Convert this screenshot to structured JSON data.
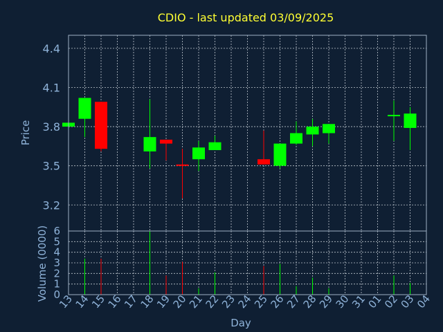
{
  "chart_data": {
    "title": "CDIO - last updated 03/09/2025",
    "type": "candlestick",
    "price_panel": {
      "ylabel": "Price",
      "ylim": [
        3.0,
        4.5
      ],
      "yticks": [
        "3.2",
        "3.5",
        "3.8",
        "4.1",
        "4.4"
      ],
      "grid": true
    },
    "volume_panel": {
      "ylabel": "Volume (0000)",
      "ylim": [
        0,
        6
      ],
      "yticks": [
        "0",
        "1",
        "2",
        "3",
        "4",
        "5",
        "6"
      ],
      "grid": true
    },
    "xlabel": "Day",
    "x_ticks": [
      "13",
      "14",
      "15",
      "16",
      "17",
      "18",
      "19",
      "20",
      "21",
      "22",
      "23",
      "24",
      "25",
      "26",
      "27",
      "28",
      "29",
      "30",
      "31",
      "01",
      "02",
      "03",
      "04"
    ],
    "colors": {
      "up": "#00ff00",
      "down": "#ff0000"
    },
    "candles": [
      {
        "x": "13",
        "open": 3.8,
        "close": 3.83,
        "high": 3.83,
        "low": 3.8,
        "volume": 0.0
      },
      {
        "x": "14",
        "open": 3.86,
        "close": 4.02,
        "high": 4.02,
        "low": 3.72,
        "volume": 3.4
      },
      {
        "x": "15",
        "open": 3.99,
        "close": 3.63,
        "high": 3.99,
        "low": 3.61,
        "volume": 3.4
      },
      {
        "x": "18",
        "open": 3.61,
        "close": 3.72,
        "high": 4.01,
        "low": 3.48,
        "volume": 6.0
      },
      {
        "x": "19",
        "open": 3.7,
        "close": 3.67,
        "high": 3.7,
        "low": 3.54,
        "volume": 1.8
      },
      {
        "x": "20",
        "open": 3.51,
        "close": 3.5,
        "high": 3.63,
        "low": 3.25,
        "volume": 3.1
      },
      {
        "x": "21",
        "open": 3.55,
        "close": 3.64,
        "high": 3.69,
        "low": 3.46,
        "volume": 0.6
      },
      {
        "x": "22",
        "open": 3.62,
        "close": 3.68,
        "high": 3.73,
        "low": 3.62,
        "volume": 2.1
      },
      {
        "x": "25",
        "open": 3.55,
        "close": 3.51,
        "high": 3.77,
        "low": 3.51,
        "volume": 2.7
      },
      {
        "x": "26",
        "open": 3.5,
        "close": 3.67,
        "high": 3.67,
        "low": 3.48,
        "volume": 2.9
      },
      {
        "x": "27",
        "open": 3.67,
        "close": 3.75,
        "high": 3.84,
        "low": 3.66,
        "volume": 0.8
      },
      {
        "x": "28",
        "open": 3.74,
        "close": 3.8,
        "high": 3.86,
        "low": 3.65,
        "volume": 1.6
      },
      {
        "x": "29",
        "open": 3.75,
        "close": 3.82,
        "high": 3.82,
        "low": 3.67,
        "volume": 0.6
      },
      {
        "x": "02",
        "open": 3.89,
        "close": 3.89,
        "high": 4.0,
        "low": 3.69,
        "volume": 1.8
      },
      {
        "x": "03",
        "open": 3.79,
        "close": 3.9,
        "high": 3.95,
        "low": 3.62,
        "volume": 1.1
      }
    ]
  }
}
